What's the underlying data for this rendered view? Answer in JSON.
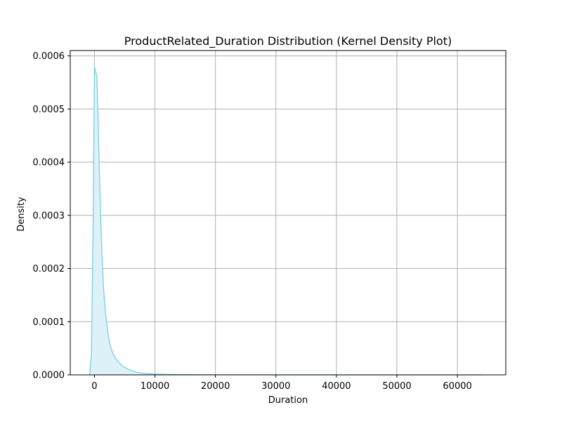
{
  "chart_data": {
    "type": "area",
    "title": "ProductRelated_Duration Distribution (Kernel Density Plot)",
    "xlabel": "Duration",
    "ylabel": "Density",
    "xlim": [
      -4000,
      68000
    ],
    "ylim": [
      0,
      0.00061
    ],
    "xticks": [
      0,
      10000,
      20000,
      30000,
      40000,
      50000,
      60000
    ],
    "yticks": [
      0,
      0.0001,
      0.0002,
      0.0003,
      0.0004,
      0.0005,
      0.0006
    ],
    "xtick_labels": [
      "0",
      "10000",
      "20000",
      "30000",
      "40000",
      "50000",
      "60000"
    ],
    "ytick_labels": [
      "0.0000",
      "0.0001",
      "0.0002",
      "0.0003",
      "0.0004",
      "0.0005",
      "0.0006"
    ],
    "grid": true,
    "colors": {
      "line": "#7ecde0",
      "fill": "#dcf1f8"
    },
    "series": [
      {
        "x": [
          -800,
          -500,
          -200,
          0,
          200,
          400,
          600,
          800,
          1000,
          1200,
          1500,
          1800,
          2200,
          2600,
          3000,
          3500,
          4000,
          4500,
          5000,
          6000,
          7000,
          8000,
          9000,
          10000,
          12000,
          14000,
          16000,
          20000,
          30000,
          40000,
          50000,
          60000,
          64000
        ],
        "y": [
          0.0,
          4e-05,
          0.0003,
          0.00058,
          0.00057,
          0.00056,
          0.00049,
          0.00039,
          0.00031,
          0.00024,
          0.000165,
          0.00012,
          8e-05,
          5.5e-05,
          4.2e-05,
          3.1e-05,
          2.4e-05,
          1.8e-05,
          1.4e-05,
          8.5e-06,
          5e-06,
          3.2e-06,
          2.2e-06,
          1.5e-06,
          9e-07,
          6e-07,
          4e-07,
          2e-07,
          1e-07,
          5e-08,
          3e-08,
          2e-08,
          1e-08
        ]
      }
    ]
  }
}
